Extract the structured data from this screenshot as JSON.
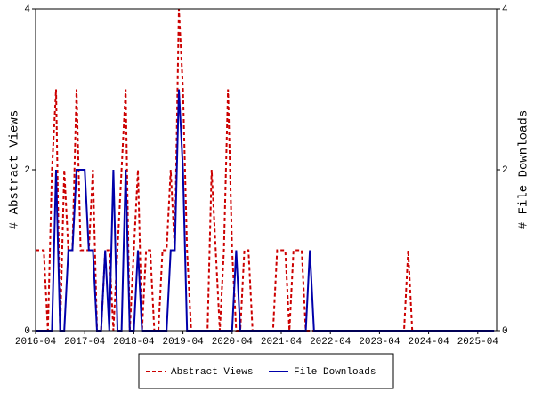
{
  "chart_data": {
    "type": "line",
    "x": [
      "2016-04",
      "2016-05",
      "2016-06",
      "2016-07",
      "2016-08",
      "2016-09",
      "2016-10",
      "2016-11",
      "2016-12",
      "2017-01",
      "2017-02",
      "2017-03",
      "2017-04",
      "2017-05",
      "2017-06",
      "2017-07",
      "2017-08",
      "2017-09",
      "2017-10",
      "2017-11",
      "2017-12",
      "2018-01",
      "2018-02",
      "2018-03",
      "2018-04",
      "2018-05",
      "2018-06",
      "2018-07",
      "2018-08",
      "2018-09",
      "2018-10",
      "2018-11",
      "2018-12",
      "2019-01",
      "2019-02",
      "2019-03",
      "2019-04",
      "2019-05",
      "2019-06",
      "2019-07",
      "2019-08",
      "2019-09",
      "2019-10",
      "2019-11",
      "2019-12",
      "2020-01",
      "2020-02",
      "2020-03",
      "2020-04",
      "2020-05",
      "2020-06",
      "2020-07",
      "2020-08",
      "2020-09",
      "2020-10",
      "2020-11",
      "2020-12",
      "2021-01",
      "2021-02",
      "2021-03",
      "2021-04",
      "2021-05",
      "2021-06",
      "2021-07",
      "2021-08",
      "2021-09",
      "2021-10",
      "2021-11",
      "2021-12",
      "2022-01",
      "2022-02",
      "2022-03",
      "2022-04",
      "2022-05",
      "2022-06",
      "2022-07",
      "2022-08",
      "2022-09",
      "2022-10",
      "2022-11",
      "2022-12",
      "2023-01",
      "2023-02",
      "2023-03",
      "2023-04",
      "2023-05",
      "2023-06",
      "2023-07",
      "2023-08",
      "2023-09",
      "2023-10",
      "2023-11",
      "2023-12",
      "2024-01",
      "2024-02",
      "2024-03",
      "2024-04",
      "2024-05",
      "2024-06",
      "2024-07",
      "2024-08",
      "2024-09",
      "2024-10",
      "2024-11",
      "2024-12",
      "2025-01",
      "2025-02",
      "2025-03",
      "2025-04",
      "2025-05",
      "2025-06",
      "2025-07",
      "2025-08"
    ],
    "xticks": [
      "2016-04",
      "2017-04",
      "2018-04",
      "2019-04",
      "2020-04",
      "2021-04",
      "2022-04",
      "2023-04",
      "2024-04",
      "2025-04"
    ],
    "ylabel": "# Abstract Views",
    "y2label": "# File Downloads",
    "ylim": [
      0,
      4
    ],
    "yticks": [
      0,
      2,
      4
    ],
    "y2lim": [
      0,
      4
    ],
    "y2ticks": [
      0,
      2,
      4
    ],
    "legend": "bottom",
    "series": [
      {
        "name": "Abstract Views",
        "color": "#cc0000",
        "dashed": true,
        "values": [
          1,
          1,
          1,
          0,
          2,
          3,
          0,
          2,
          1,
          1,
          3,
          1,
          1,
          1,
          2,
          0,
          0,
          1,
          1,
          0,
          1,
          2,
          3,
          0,
          1,
          2,
          0,
          1,
          1,
          0,
          0,
          1,
          1,
          2,
          1,
          4,
          3,
          1,
          0,
          0,
          0,
          0,
          0,
          2,
          1,
          0,
          1,
          3,
          1,
          0,
          0,
          1,
          1,
          0,
          0,
          0,
          0,
          0,
          0,
          1,
          1,
          1,
          0,
          1,
          1,
          1,
          0,
          0,
          0,
          0,
          0,
          0,
          0,
          0,
          0,
          0,
          0,
          0,
          0,
          0,
          0,
          0,
          0,
          0,
          0,
          0,
          0,
          0,
          0,
          0,
          0,
          1,
          0,
          0,
          0,
          0,
          0,
          0,
          0,
          0,
          0,
          0,
          0,
          0,
          0,
          0,
          0,
          0,
          0,
          0,
          0,
          0,
          0
        ]
      },
      {
        "name": "File Downloads",
        "color": "#0000aa",
        "dashed": false,
        "axis": "y2",
        "values": [
          0,
          0,
          0,
          0,
          0,
          2,
          0,
          0,
          1,
          1,
          2,
          2,
          2,
          1,
          1,
          0,
          0,
          1,
          0,
          2,
          0,
          0,
          2,
          0,
          0,
          1,
          0,
          0,
          0,
          0,
          0,
          0,
          0,
          1,
          1,
          3,
          2,
          0,
          0,
          0,
          0,
          0,
          0,
          0,
          0,
          0,
          0,
          0,
          0,
          1,
          0,
          0,
          0,
          0,
          0,
          0,
          0,
          0,
          0,
          0,
          0,
          0,
          0,
          0,
          0,
          0,
          0,
          1,
          0,
          0,
          0,
          0,
          0,
          0,
          0,
          0,
          0,
          0,
          0,
          0,
          0,
          0,
          0,
          0,
          0,
          0,
          0,
          0,
          0,
          0,
          0,
          0,
          0,
          0,
          0,
          0,
          0,
          0,
          0,
          0,
          0,
          0,
          0,
          0,
          0,
          0,
          0,
          0,
          0,
          0,
          0,
          0,
          0
        ]
      }
    ]
  }
}
